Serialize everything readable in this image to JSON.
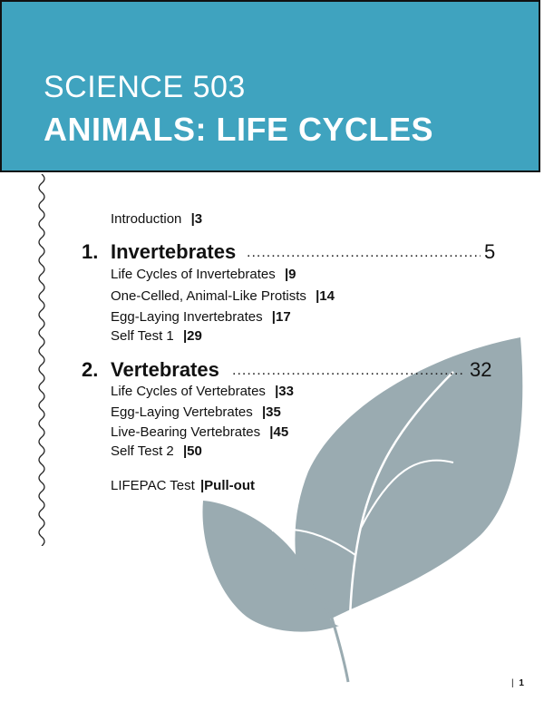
{
  "header": {
    "subject": "SCIENCE 503",
    "title": "ANIMALS: LIFE CYCLES",
    "color": "#3fa3bf"
  },
  "toc": {
    "introduction": {
      "label": "Introduction",
      "page": "|3"
    },
    "sections": [
      {
        "number": "1.",
        "title": "Invertebrates",
        "page": "5",
        "items": [
          {
            "label": "Life Cycles of Invertebrates",
            "page": "|9"
          },
          {
            "label": "One-Celled, Animal-Like Protists",
            "page": "|14"
          },
          {
            "label": "Egg-Laying Invertebrates",
            "page": "|17"
          },
          {
            "label": "Self Test 1",
            "page": "|29"
          }
        ]
      },
      {
        "number": "2.",
        "title": "Vertebrates",
        "page": "32",
        "items": [
          {
            "label": "Life Cycles of Vertebrates",
            "page": "|33"
          },
          {
            "label": "Egg-Laying Vertebrates",
            "page": "|35"
          },
          {
            "label": "Live-Bearing Vertebrates",
            "page": "|45"
          },
          {
            "label": "Self Test 2",
            "page": "|50"
          }
        ]
      }
    ],
    "lifepac": {
      "label": "LIFEPAC Test",
      "page": "|Pull-out"
    }
  },
  "footer": {
    "separator": "|",
    "page_number": "1"
  },
  "decor": {
    "leaf_color": "#9aabb1",
    "leaf_icon": "leaf-icon",
    "wave_icon": "wavy-line-icon"
  }
}
